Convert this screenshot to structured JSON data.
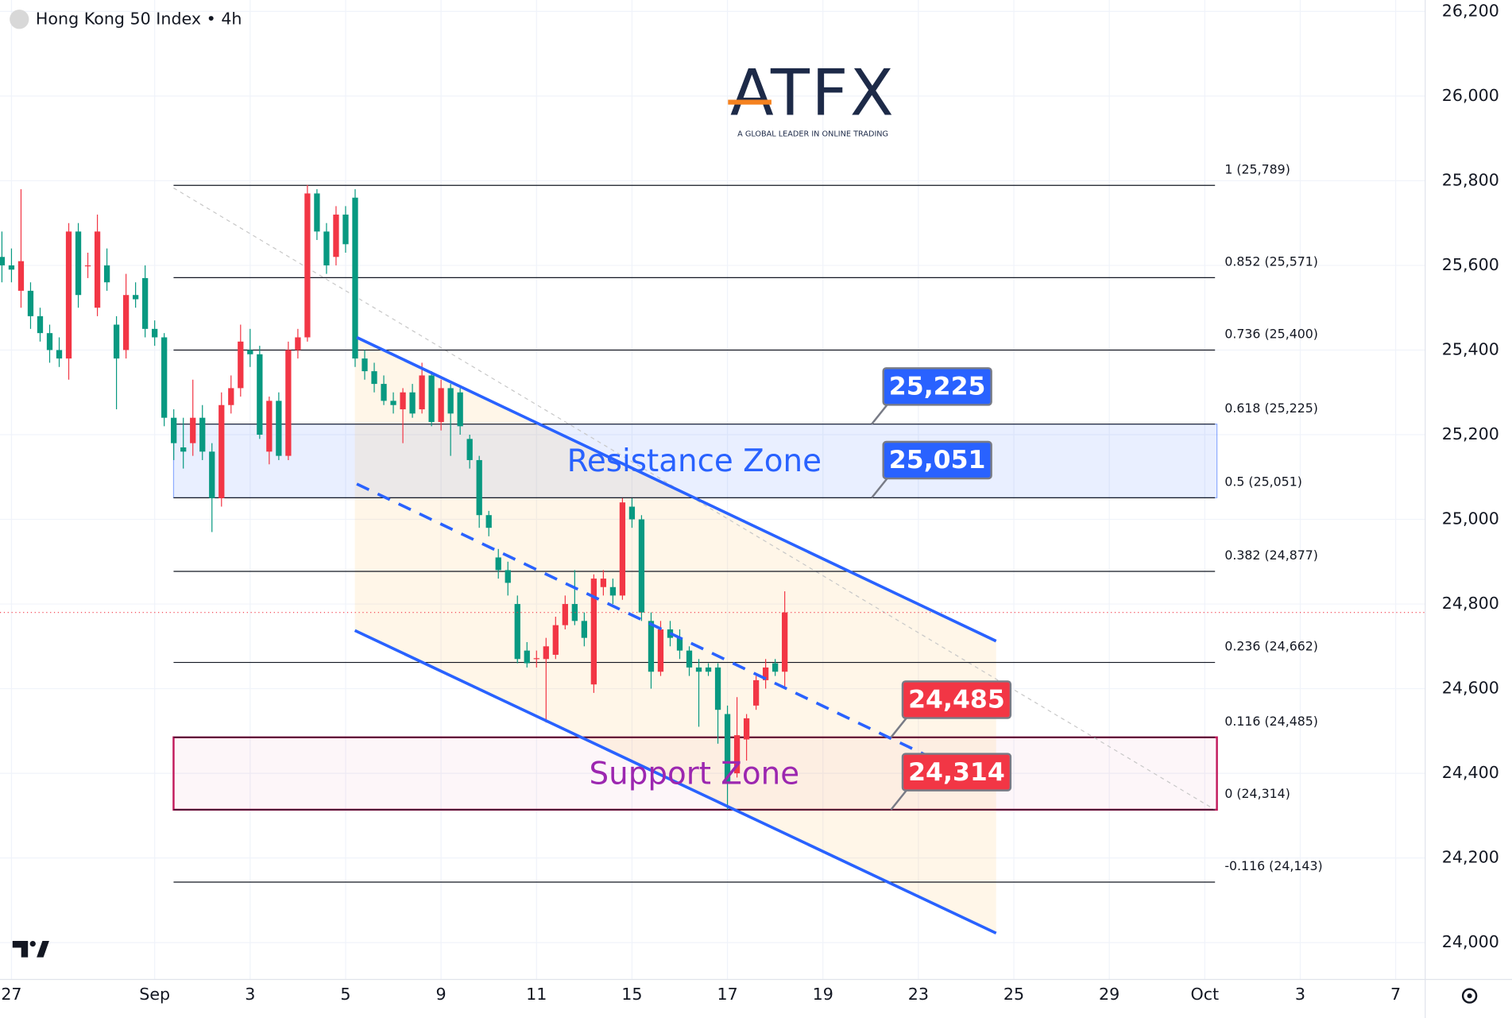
{
  "chart_data": {
    "type": "candlestick",
    "title": "Hong Kong 50 Index • 4h",
    "watermark": "ATFX",
    "watermark_tagline": "A GLOBAL LEADER IN ONLINE TRADING",
    "up_color": "#f23645",
    "down_color": "#089981",
    "grid": true,
    "ylim": [
      23913,
      26227
    ],
    "yticks": [
      {
        "value": 24000,
        "label": "24,000"
      },
      {
        "value": 24200,
        "label": "24,200"
      },
      {
        "value": 24400,
        "label": "24,400"
      },
      {
        "value": 24600,
        "label": "24,600"
      },
      {
        "value": 24800,
        "label": "24,800"
      },
      {
        "value": 25000,
        "label": "25,000"
      },
      {
        "value": 25200,
        "label": "25,200"
      },
      {
        "value": 25400,
        "label": "25,400"
      },
      {
        "value": 25600,
        "label": "25,600"
      },
      {
        "value": 25800,
        "label": "25,800"
      },
      {
        "value": 26000,
        "label": "26,000"
      },
      {
        "value": 26200,
        "label": "26,200"
      }
    ],
    "categories": [
      null,
      "27",
      null,
      null,
      null,
      null,
      null,
      null,
      null,
      null,
      null,
      null,
      null,
      null,
      null,
      null,
      "Sep",
      null,
      null,
      null,
      null,
      null,
      null,
      null,
      null,
      null,
      "3",
      null,
      null,
      null,
      null,
      null,
      null,
      null,
      null,
      null,
      "5",
      null,
      null,
      null,
      null,
      null,
      null,
      null,
      null,
      null,
      "9",
      null,
      null,
      null,
      null,
      null,
      null,
      null,
      null,
      null,
      "11",
      null,
      null,
      null,
      null,
      null,
      null,
      null,
      null,
      null,
      "15",
      null,
      null,
      null,
      null,
      null,
      null,
      null,
      null,
      null,
      "17",
      null,
      null,
      null,
      null,
      null,
      null,
      null,
      null,
      null,
      "19",
      null,
      null,
      null,
      null,
      null,
      null,
      null,
      null,
      null,
      "23",
      null,
      null,
      null,
      null,
      null,
      null,
      null,
      null,
      null,
      "25",
      null,
      null,
      null,
      null,
      null,
      null,
      null,
      null,
      null,
      "29",
      null,
      null,
      null,
      null,
      null,
      null,
      null,
      null,
      null,
      "Oct",
      null,
      null,
      null,
      null,
      null,
      null,
      null,
      null,
      null,
      "3",
      null,
      null,
      null,
      null,
      null,
      null,
      null,
      null,
      null,
      "7",
      null,
      null,
      null
    ],
    "candles": {
      "open": [
        25620,
        25600,
        25540,
        25540,
        25480,
        25440,
        25400,
        25380,
        25680,
        25600,
        25500,
        25600,
        25460,
        25400,
        25530,
        25570,
        25450,
        25430,
        25240,
        25170,
        25180,
        25240,
        25160,
        25050,
        25270,
        25310,
        25400,
        25390,
        25160,
        25280,
        25150,
        25400,
        25430,
        25770,
        25680,
        25620,
        25720,
        25760,
        25380,
        25350,
        25320,
        25280,
        25260,
        25300,
        25260,
        25340,
        25230,
        25310,
        25300,
        25190,
        25140,
        25010,
        24910,
        24880,
        24800,
        24690,
        24670,
        24670,
        24680,
        24750,
        24800,
        24760,
        24610,
        24840,
        24840,
        24820,
        25030,
        25000,
        24760,
        24640,
        24740,
        24720,
        24690,
        24650,
        24650,
        24650,
        24540,
        24400,
        24480,
        24560,
        24620,
        24660,
        24640,
        null,
        null,
        null,
        null,
        null,
        null,
        null,
        null,
        null,
        null,
        null,
        null,
        null,
        null,
        null,
        null,
        null,
        null,
        null,
        null,
        null,
        null,
        null,
        null,
        null,
        null,
        null,
        null,
        null,
        null,
        null,
        null,
        null,
        null,
        null,
        null,
        null,
        null,
        null,
        null,
        null,
        null,
        null,
        null,
        null,
        null,
        null,
        null,
        null,
        null,
        null,
        null,
        null,
        null,
        null,
        null,
        null,
        null,
        null,
        null,
        null,
        null,
        null,
        null,
        null,
        null,
        null
      ],
      "high": [
        25680,
        25640,
        25780,
        25560,
        25500,
        25460,
        25430,
        25700,
        25700,
        25630,
        25720,
        25640,
        25480,
        25580,
        25560,
        25600,
        25470,
        25440,
        25260,
        25240,
        25330,
        25270,
        25180,
        25300,
        25340,
        25460,
        25450,
        25410,
        25290,
        25300,
        25420,
        25450,
        25790,
        25780,
        25700,
        25740,
        25740,
        25780,
        25400,
        25370,
        25340,
        25300,
        25310,
        25320,
        25370,
        25350,
        25330,
        25320,
        25310,
        25200,
        25150,
        25020,
        24930,
        24900,
        24820,
        24710,
        24690,
        24720,
        24770,
        24820,
        24880,
        24780,
        24870,
        24880,
        24860,
        25050,
        25050,
        25010,
        24780,
        24760,
        24760,
        24740,
        24700,
        24670,
        24660,
        24660,
        24560,
        24580,
        24540,
        24630,
        24670,
        24670,
        24830,
        null,
        null,
        null,
        null,
        null,
        null,
        null,
        null,
        null,
        null,
        null,
        null,
        null,
        null,
        null,
        null,
        null,
        null,
        null,
        null,
        null,
        null,
        null,
        null,
        null,
        null,
        null,
        null,
        null,
        null,
        null,
        null,
        null,
        null,
        null,
        null,
        null,
        null,
        null,
        null,
        null,
        null,
        null,
        null,
        null,
        null,
        null,
        null,
        null,
        null,
        null,
        null,
        null,
        null,
        null,
        null,
        null,
        null,
        null,
        null,
        null,
        null,
        null,
        null,
        null,
        null,
        null
      ],
      "low": [
        25560,
        25560,
        25500,
        25450,
        25420,
        25370,
        25360,
        25330,
        25500,
        25570,
        25480,
        25540,
        25260,
        25380,
        25500,
        25430,
        25410,
        25220,
        25140,
        25120,
        25150,
        25140,
        24970,
        25030,
        25250,
        25290,
        25360,
        25190,
        25130,
        25140,
        25140,
        25380,
        25420,
        25660,
        25580,
        25600,
        25630,
        25360,
        25330,
        25300,
        25270,
        25250,
        25180,
        25240,
        25250,
        25220,
        25210,
        25150,
        25200,
        25120,
        24980,
        24960,
        24860,
        24820,
        24660,
        24650,
        24650,
        24520,
        24670,
        24740,
        24750,
        24700,
        24590,
        24820,
        24800,
        24810,
        24980,
        24760,
        24600,
        24630,
        24700,
        24670,
        24630,
        24510,
        24630,
        24470,
        24314,
        24390,
        24430,
        24550,
        24600,
        24630,
        24600,
        null,
        null,
        null,
        null,
        null,
        null,
        null,
        null,
        null,
        null,
        null,
        null,
        null,
        null,
        null,
        null,
        null,
        null,
        null,
        null,
        null,
        null,
        null,
        null,
        null,
        null,
        null,
        null,
        null,
        null,
        null,
        null,
        null,
        null,
        null,
        null,
        null,
        null,
        null,
        null,
        null,
        null,
        null,
        null,
        null,
        null,
        null,
        null,
        null,
        null,
        null,
        null,
        null,
        null,
        null,
        null,
        null,
        null,
        null,
        null,
        null,
        null,
        null,
        null,
        null,
        null,
        null
      ],
      "close": [
        25600,
        25590,
        25610,
        25480,
        25440,
        25400,
        25380,
        25680,
        25530,
        25600,
        25680,
        25560,
        25380,
        25530,
        25520,
        25450,
        25430,
        25240,
        25180,
        25160,
        25240,
        25160,
        25050,
        25270,
        25310,
        25420,
        25390,
        25200,
        25280,
        25150,
        25400,
        25430,
        25770,
        25680,
        25600,
        25720,
        25650,
        25380,
        25350,
        25320,
        25280,
        25270,
        25300,
        25250,
        25340,
        25230,
        25310,
        25250,
        25220,
        25140,
        25010,
        24980,
        24880,
        24850,
        24670,
        24660,
        24672,
        24700,
        24750,
        24800,
        24760,
        24720,
        24860,
        24860,
        24820,
        25040,
        25000,
        24780,
        24640,
        24740,
        24720,
        24690,
        24650,
        24640,
        24640,
        24550,
        24380,
        24490,
        24530,
        24620,
        24650,
        24640,
        24780,
        null,
        null,
        null,
        null,
        null,
        null,
        null,
        null,
        null,
        null,
        null,
        null,
        null,
        null,
        null,
        null,
        null,
        null,
        null,
        null,
        null,
        null,
        null,
        null,
        null,
        null,
        null,
        null,
        null,
        null,
        null,
        null,
        null,
        null,
        null,
        null,
        null,
        null,
        null,
        null,
        null,
        null,
        null,
        null,
        null,
        null,
        null,
        null,
        null,
        null,
        null,
        null,
        null,
        null,
        null,
        null,
        null,
        null,
        null,
        null,
        null,
        null,
        null,
        null,
        null,
        null,
        null
      ]
    },
    "fib_levels": [
      {
        "value": 25789,
        "label": "1 (25,789)"
      },
      {
        "value": 25571,
        "label": "0.852 (25,571)"
      },
      {
        "value": 25400,
        "label": "0.736 (25,400)"
      },
      {
        "value": 25225,
        "label": "0.618 (25,225)"
      },
      {
        "value": 25051,
        "label": "0.5 (25,051)"
      },
      {
        "value": 24877,
        "label": "0.382 (24,877)"
      },
      {
        "value": 24662,
        "label": "0.236 (24,662)"
      },
      {
        "value": 24485,
        "label": "0.116 (24,485)"
      },
      {
        "value": 24314,
        "label": "0 (24,314)"
      },
      {
        "value": 24143,
        "label": "-0.116 (24,143)"
      }
    ],
    "resistance_zone": {
      "label": "Resistance Zone",
      "low": 25051,
      "high": 25225,
      "color": "#2962ff"
    },
    "support_zone": {
      "label": "Support Zone",
      "low": 24314,
      "high": 24485,
      "color": "#c2185b",
      "text_color": "#9c27b0"
    },
    "price_labels": [
      {
        "value": 25225,
        "label": "25,225",
        "color": "#2962ff"
      },
      {
        "value": 25051,
        "label": "25,051",
        "color": "#2962ff"
      },
      {
        "value": 24485,
        "label": "24,485",
        "color": "#f23645"
      },
      {
        "value": 24314,
        "label": "24,314",
        "color": "#f23645"
      }
    ]
  }
}
